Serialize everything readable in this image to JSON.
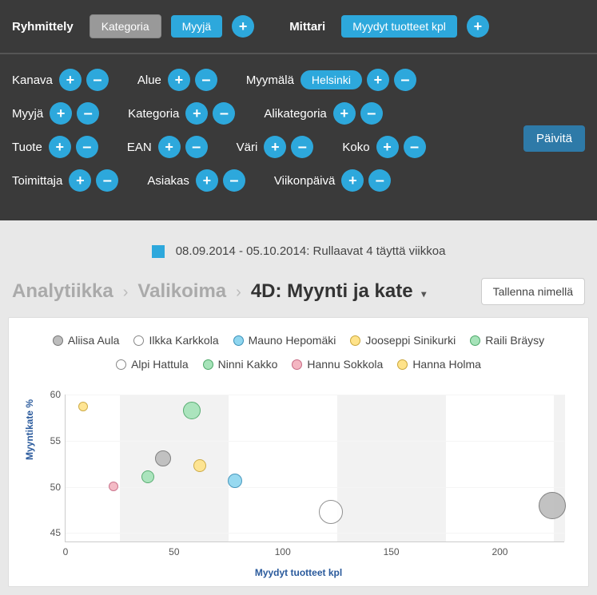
{
  "topbar": {
    "groupLabel": "Ryhmittely",
    "categoryTag": "Kategoria",
    "sellerTag": "Myyjä",
    "metricLabel": "Mittari",
    "metricTag": "Myydyt tuotteet kpl"
  },
  "filters": {
    "updateBtn": "Päivitä",
    "rows": [
      [
        {
          "label": "Kanava",
          "pills": []
        },
        {
          "label": "Alue",
          "pills": []
        },
        {
          "label": "Myymälä",
          "pills": [
            "Helsinki"
          ]
        }
      ],
      [
        {
          "label": "Myyjä",
          "pills": []
        },
        {
          "label": "Kategoria",
          "pills": []
        },
        {
          "label": "Alikategoria",
          "pills": []
        }
      ],
      [
        {
          "label": "Tuote",
          "pills": []
        },
        {
          "label": "EAN",
          "pills": []
        },
        {
          "label": "Väri",
          "pills": []
        },
        {
          "label": "Koko",
          "pills": []
        }
      ],
      [
        {
          "label": "Toimittaja",
          "pills": []
        },
        {
          "label": "Asiakas",
          "pills": []
        },
        {
          "label": "Viikonpäivä",
          "pills": []
        }
      ]
    ]
  },
  "dateRange": {
    "swatchColor": "#2da8dc",
    "text": "08.09.2014 - 05.10.2014:   Rullaavat 4 täyttä viikkoa"
  },
  "breadcrumb": {
    "items": [
      "Analytiikka",
      "Valikoima"
    ],
    "current": "4D: Myynti ja kate",
    "saveAs": "Tallenna nimellä"
  },
  "chart": {
    "type": "bubble",
    "yLabel": "Myyntikate %",
    "xLabel": "Myydyt tuotteet kpl",
    "xlim": [
      0,
      230
    ],
    "ylim": [
      44,
      60
    ],
    "xticks": [
      0,
      50,
      100,
      150,
      200
    ],
    "yticks": [
      45,
      50,
      55,
      60
    ],
    "altBands": [
      [
        25,
        75
      ],
      [
        125,
        175
      ],
      [
        225,
        230
      ]
    ],
    "bandColor": "#f2f2f2",
    "bgColor": "#ffffff",
    "gridColor": "#f5f5f5",
    "axisColor": "#cccccc",
    "tickFontSize": 12,
    "labelFontSize": 12,
    "labelColor": "#2a5a9c",
    "legend": [
      {
        "label": "Aliisa Aula",
        "fill": "#bdbdbd",
        "stroke": "#777"
      },
      {
        "label": "Ilkka Karkkola",
        "fill": "#ffffff",
        "stroke": "#888"
      },
      {
        "label": "Mauno Hepomäki",
        "fill": "#8fd6ef",
        "stroke": "#3a90b8"
      },
      {
        "label": "Jooseppi Sinikurki",
        "fill": "#ffe38a",
        "stroke": "#caa63a"
      },
      {
        "label": "Raili Bräysy",
        "fill": "#a6e3b9",
        "stroke": "#4ca868"
      },
      {
        "label": "Alpi Hattula",
        "fill": "#ffffff",
        "stroke": "#888"
      },
      {
        "label": "Ninni Kakko",
        "fill": "#a6e3b9",
        "stroke": "#4ca868"
      },
      {
        "label": "Hannu Sokkola",
        "fill": "#f4b6c2",
        "stroke": "#c76a84"
      },
      {
        "label": "Hanna Holma",
        "fill": "#ffe38a",
        "stroke": "#caa63a"
      }
    ],
    "points": [
      {
        "x": 8,
        "y": 58.6,
        "r": 6,
        "fill": "#ffe38a",
        "stroke": "#caa63a"
      },
      {
        "x": 58,
        "y": 58.2,
        "r": 11,
        "fill": "#a6e3b9",
        "stroke": "#4ca868"
      },
      {
        "x": 45,
        "y": 53.0,
        "r": 10,
        "fill": "#bdbdbd",
        "stroke": "#777"
      },
      {
        "x": 38,
        "y": 51.0,
        "r": 8,
        "fill": "#a6e3b9",
        "stroke": "#4ca868"
      },
      {
        "x": 62,
        "y": 52.2,
        "r": 8,
        "fill": "#ffe38a",
        "stroke": "#caa63a"
      },
      {
        "x": 22,
        "y": 50.0,
        "r": 6,
        "fill": "#f4b6c2",
        "stroke": "#c76a84"
      },
      {
        "x": 78,
        "y": 50.6,
        "r": 9,
        "fill": "#8fd6ef",
        "stroke": "#3a90b8"
      },
      {
        "x": 122,
        "y": 47.2,
        "r": 15,
        "fill": "#ffffff",
        "stroke": "#888"
      },
      {
        "x": 224,
        "y": 47.9,
        "r": 17,
        "fill": "#bdbdbd",
        "stroke": "#777"
      }
    ]
  }
}
